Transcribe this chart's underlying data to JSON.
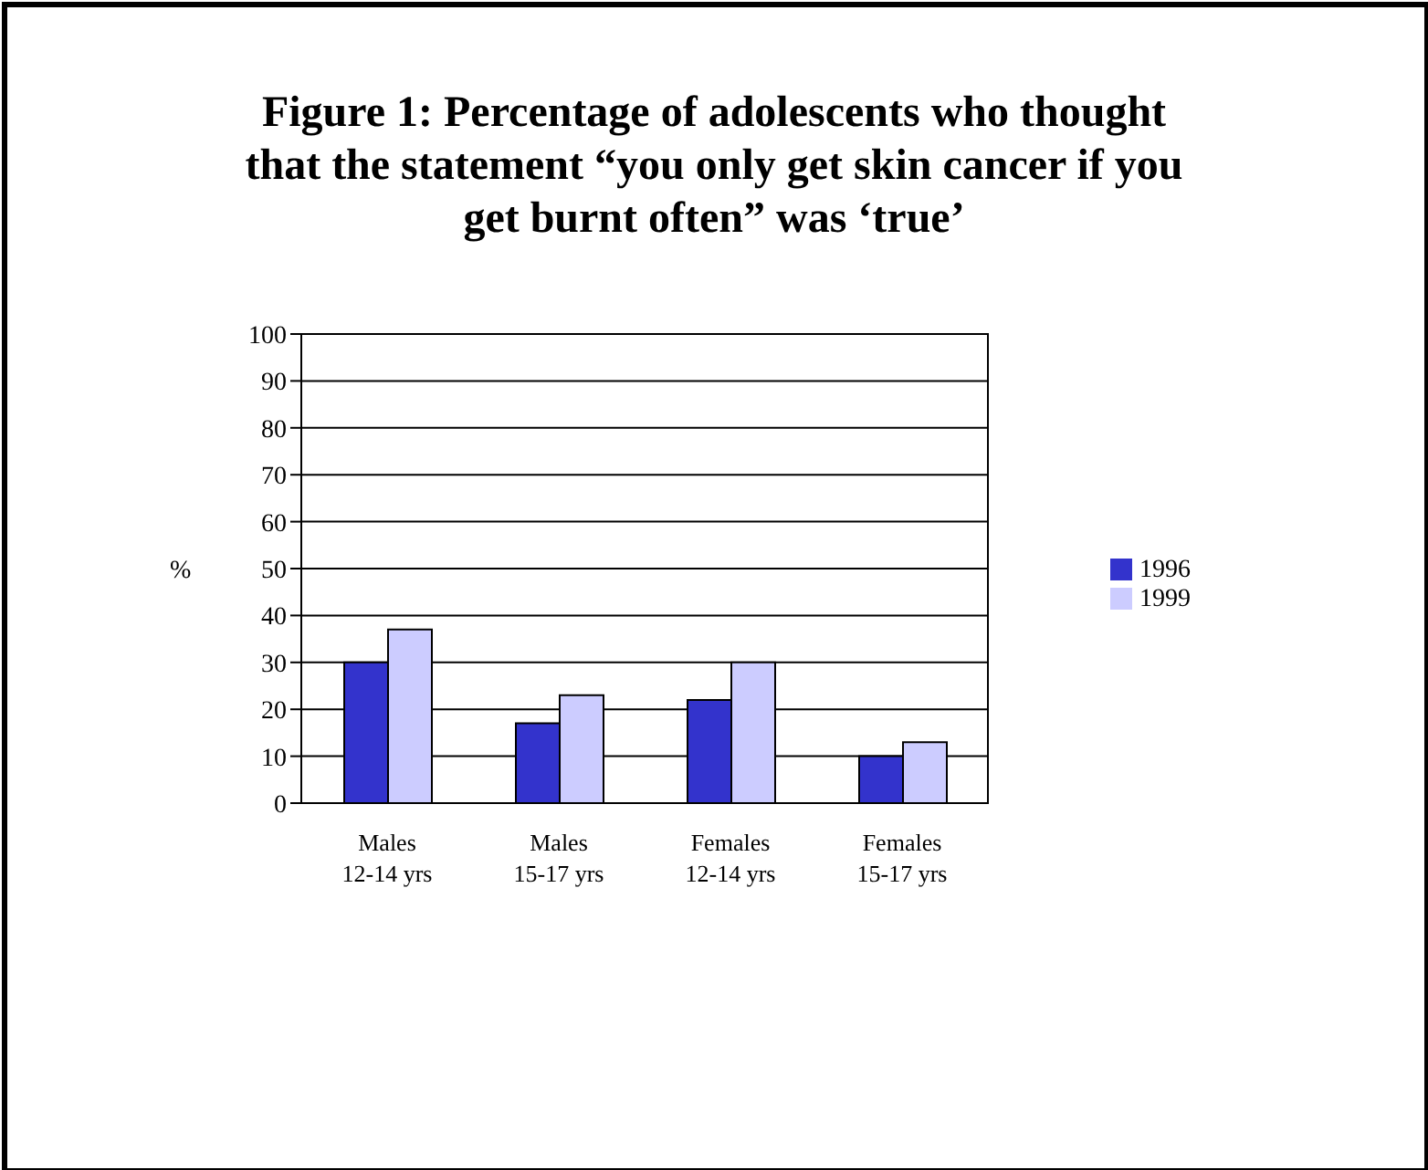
{
  "chart_data": {
    "type": "bar",
    "title": "Figure 1: Percentage of adolescents who thought that the statement “you only get skin cancer if you get burnt often” was ‘true’",
    "ylabel": "%",
    "categories": [
      "Males 12-14 yrs",
      "Males 15-17 yrs",
      "Females 12-14 yrs",
      "Females 15-17 yrs"
    ],
    "series": [
      {
        "name": "1996",
        "color": "#3333cc",
        "values": [
          30,
          17,
          22,
          10
        ]
      },
      {
        "name": "1999",
        "color": "#ccccff",
        "values": [
          37,
          23,
          30,
          13
        ]
      }
    ],
    "ylim": [
      0,
      100
    ],
    "yticks": [
      0,
      10,
      20,
      30,
      40,
      50,
      60,
      70,
      80,
      90,
      100
    ],
    "grid": "y",
    "legend": "right"
  }
}
